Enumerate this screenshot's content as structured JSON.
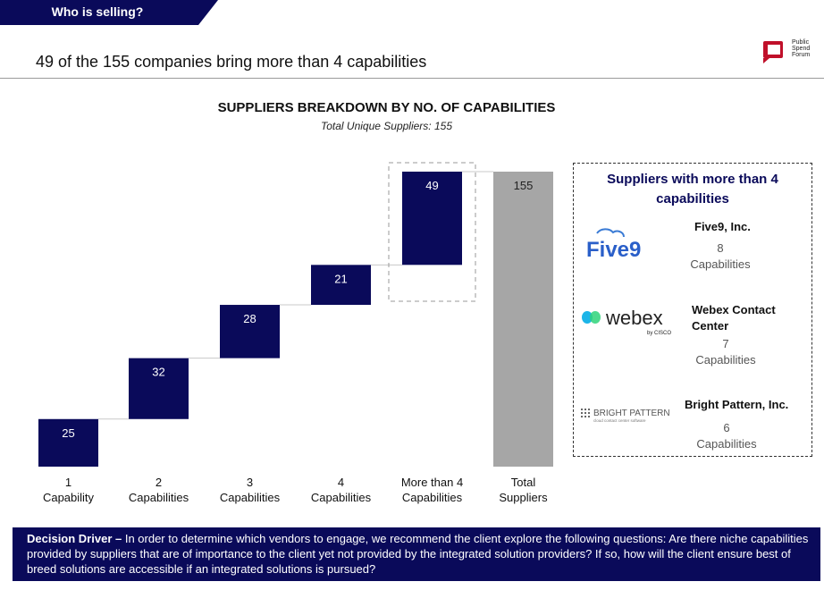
{
  "banner": {
    "text": "Who is selling?",
    "color": "#0a0a5a"
  },
  "headline": "49 of the 155 companies bring more than 4 capabilities",
  "brand_logo": {
    "lines": [
      "Public",
      "Spend",
      "Forum"
    ],
    "accent": "#c0102a"
  },
  "chart_data": {
    "type": "bar",
    "subtype": "waterfall",
    "title": "SUPPLIERS BREAKDOWN BY NO. OF CAPABILITIES",
    "subtitle": "Total Unique Suppliers: 155",
    "categories": [
      [
        "1",
        "Capability"
      ],
      [
        "2",
        "Capabilities"
      ],
      [
        "3",
        "Capabilities"
      ],
      [
        "4",
        "Capabilities"
      ],
      [
        "More than 4",
        "Capabilities"
      ],
      [
        "Total",
        "Suppliers"
      ]
    ],
    "values": [
      25,
      32,
      28,
      21,
      49,
      155
    ],
    "total_index": 5,
    "highlight_index": 4,
    "colors": {
      "step": "#0a0a5a",
      "total": "#a6a6a6",
      "connector": "#c8c8c8"
    },
    "ylim": [
      0,
      155
    ],
    "grid": false,
    "legend": "none"
  },
  "panel": {
    "title": "Suppliers with more than 4 capabilities",
    "suppliers": [
      {
        "logo": "Five9",
        "name": "Five9, Inc.",
        "count": "8",
        "unit": "Capabilities"
      },
      {
        "logo": "webex",
        "logo_sub": "by CISCO",
        "name": "Webex Contact Center",
        "count": "7",
        "unit": "Capabilities"
      },
      {
        "logo": "BRIGHT PATTERN",
        "logo_sub": "cloud contact center software",
        "name": "Bright Pattern, Inc.",
        "count": "6",
        "unit": "Capabilities"
      }
    ]
  },
  "footer": {
    "label": "Decision Driver –",
    "text": " In order to determine which vendors to engage, we recommend the client explore the following questions: Are there niche capabilities provided by suppliers that are of importance to the client yet not provided by the integrated solution providers?  If so, how will the client ensure best of breed solutions are accessible if an integrated solutions is pursued?"
  }
}
